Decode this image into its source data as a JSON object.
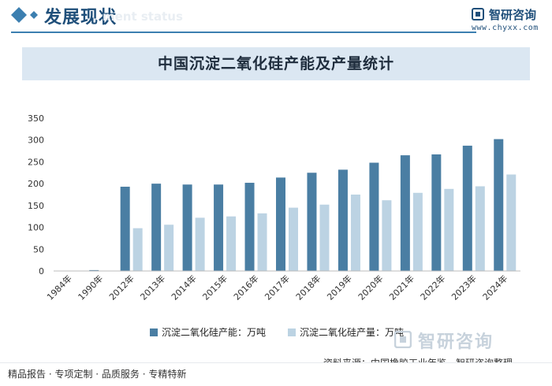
{
  "header": {
    "title": "发展现状",
    "subtitle_en": "ment status"
  },
  "brand": {
    "name": "智研咨询",
    "url": "www.chyxx.com"
  },
  "chart_data": {
    "type": "bar",
    "title": "中国沉淀二氧化硅产能及产量统计",
    "categories": [
      "1984年",
      "1990年",
      "2012年",
      "2013年",
      "2014年",
      "2015年",
      "2016年",
      "2017年",
      "2018年",
      "2019年",
      "2020年",
      "2021年",
      "2022年",
      "2023年",
      "2024年"
    ],
    "series": [
      {
        "name": "沉淀二氧化硅产能：万吨",
        "color": "#4a7ea3",
        "values": [
          0.5,
          2,
          193,
          200,
          198,
          198,
          202,
          214,
          225,
          232,
          248,
          265,
          267,
          287,
          302
        ]
      },
      {
        "name": "沉淀二氧化硅产量：万吨",
        "color": "#bcd3e3",
        "values": [
          0.2,
          0.5,
          98,
          106,
          122,
          125,
          132,
          145,
          152,
          175,
          162,
          179,
          188,
          194,
          221
        ]
      }
    ],
    "ylim": [
      0,
      350
    ],
    "yticks": [
      0,
      50,
      100,
      150,
      200,
      250,
      300,
      350
    ],
    "grid": false,
    "legend_position": "bottom"
  },
  "source": "资料来源：中国橡胶工业年鉴、智研咨询整理",
  "footer": {
    "text": "精品报告 · 专项定制 · 品质服务 · 专精特新",
    "logo_name": "智研咨询"
  }
}
